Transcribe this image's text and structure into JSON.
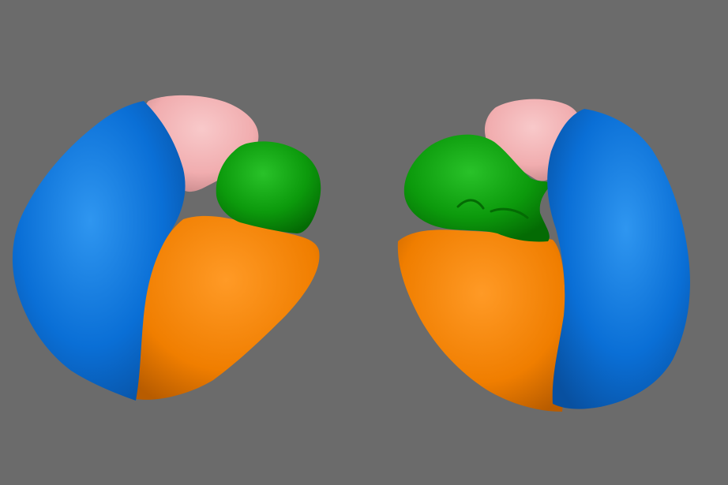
{
  "scene": {
    "background_color": "#6b6b6b",
    "colors": {
      "blue": "#0a6fd6",
      "blue_highlight": "#2f96f0",
      "blue_shadow": "#0850a0",
      "orange": "#f07e00",
      "orange_highlight": "#ff9a26",
      "orange_shadow": "#b85c00",
      "green": "#0c9a0c",
      "green_highlight": "#29c229",
      "green_shadow": "#046b04",
      "pink": "#f1adaf",
      "pink_highlight": "#f8c9ca",
      "pink_shadow": "#c88a8c"
    },
    "objects": [
      {
        "name": "left-blue-structure",
        "color": "blue"
      },
      {
        "name": "left-pink-structure",
        "color": "pink"
      },
      {
        "name": "left-green-structure",
        "color": "green"
      },
      {
        "name": "left-orange-structure",
        "color": "orange"
      },
      {
        "name": "right-pink-structure",
        "color": "pink"
      },
      {
        "name": "right-green-structure",
        "color": "green"
      },
      {
        "name": "right-orange-structure",
        "color": "orange"
      },
      {
        "name": "right-blue-structure",
        "color": "blue"
      }
    ]
  }
}
